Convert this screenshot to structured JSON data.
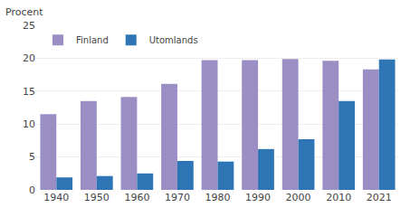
{
  "chart_data": {
    "type": "bar",
    "ylabel": "Procent",
    "categories": [
      "1940",
      "1950",
      "1960",
      "1970",
      "1980",
      "1990",
      "2000",
      "2010",
      "2021"
    ],
    "series": [
      {
        "name": "Finland",
        "color": "#9b8ec4",
        "values": [
          11.5,
          13.5,
          14.1,
          16.1,
          19.7,
          19.7,
          19.9,
          19.6,
          18.3
        ]
      },
      {
        "name": "Utomlands",
        "color": "#2e75b6",
        "values": [
          1.9,
          2.1,
          2.5,
          4.4,
          4.3,
          6.2,
          7.7,
          13.5,
          19.8
        ]
      }
    ],
    "ylim": [
      0,
      25
    ],
    "yticks": [
      0,
      5,
      10,
      15,
      20,
      25
    ],
    "grid": true,
    "legend": "upper left"
  }
}
